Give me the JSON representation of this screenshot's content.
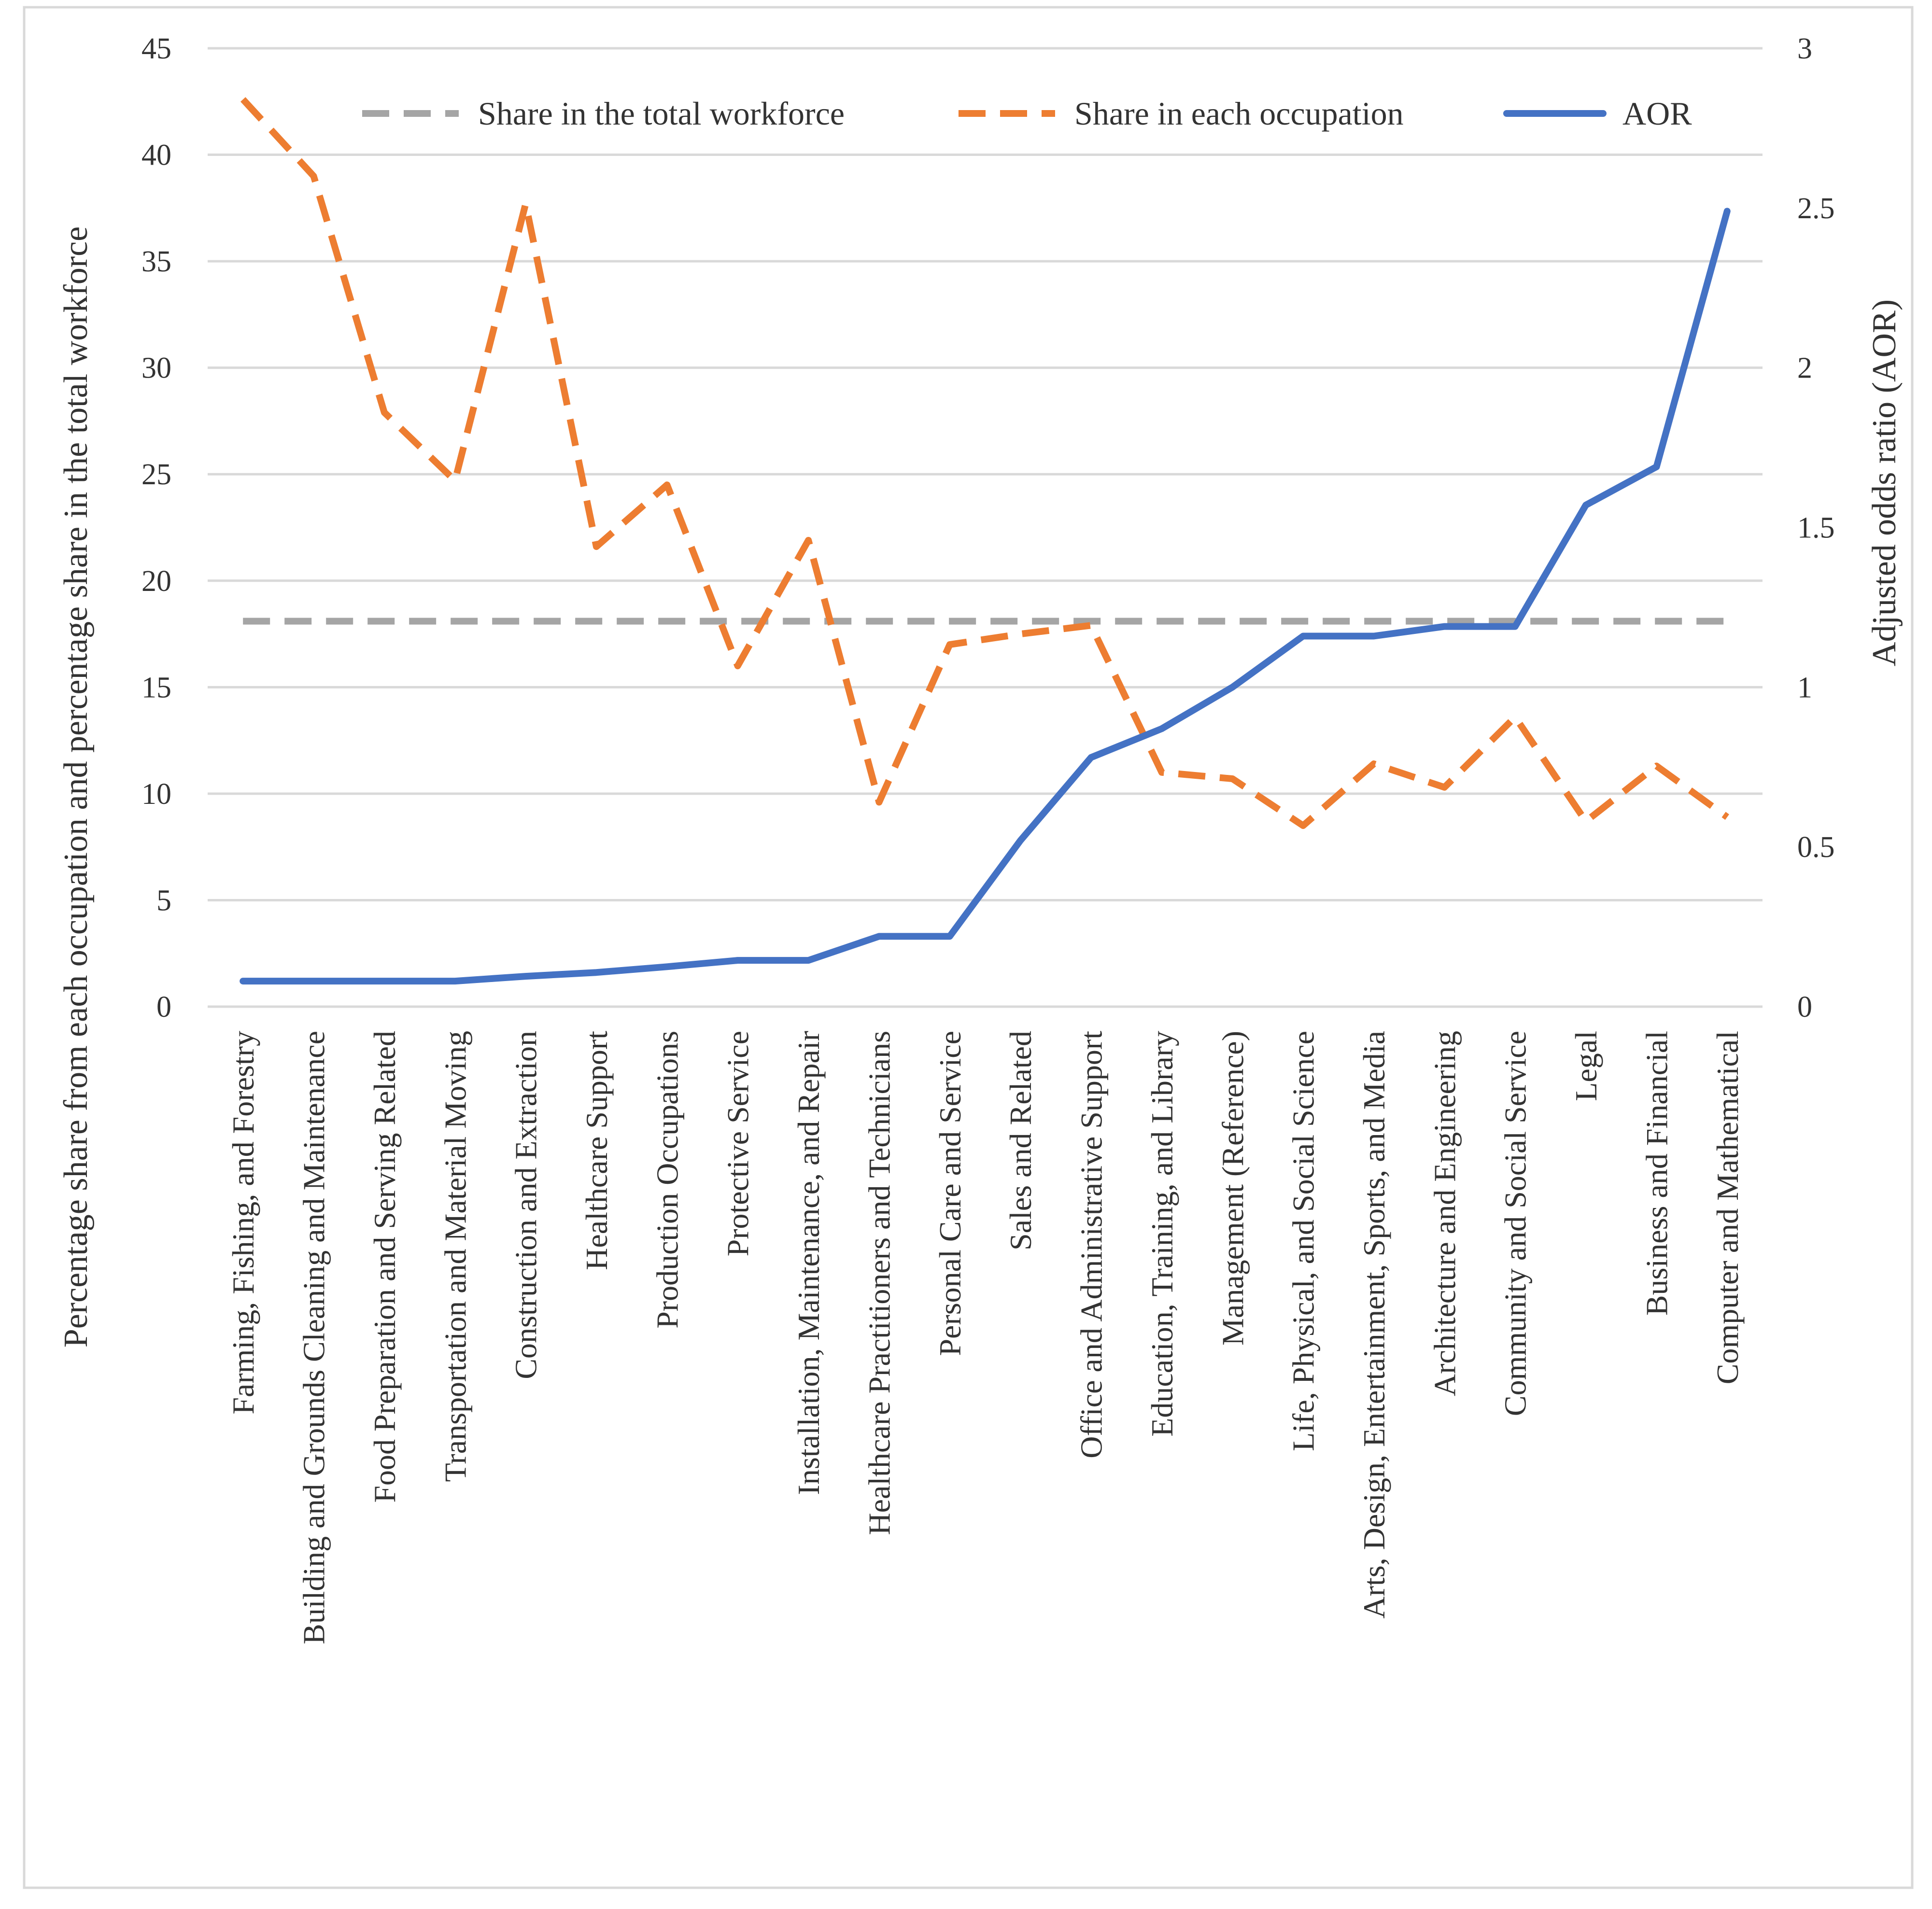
{
  "chart_data": {
    "type": "line",
    "title": "",
    "categories": [
      "Farming, Fishing, and Forestry",
      "Building and Grounds Cleaning and Maintenance",
      "Food Preparation and Serving Related",
      "Transportation and Material Moving",
      "Construction and Extraction",
      "Healthcare Support",
      "Production Occupations",
      "Protective Service",
      "Installation, Maintenance, and Repair",
      "Healthcare Practitioners and Technicians",
      "Personal Care and Service",
      "Sales and Related",
      "Office and Administrative Support",
      "Education, Training, and Library",
      "Management (Reference)",
      "Life, Physical, and Social Science",
      "Arts, Design, Entertainment, Sports, and Media",
      "Architecture and Engineering",
      "Community and Social Service",
      "Legal",
      "Business and Financial",
      "Computer and Mathematical"
    ],
    "series": [
      {
        "name": "Share in the total workforce",
        "axis": "left",
        "color": "#a5a5a5",
        "dash": "dashed",
        "values": [
          18.1,
          18.1,
          18.1,
          18.1,
          18.1,
          18.1,
          18.1,
          18.1,
          18.1,
          18.1,
          18.1,
          18.1,
          18.1,
          18.1,
          18.1,
          18.1,
          18.1,
          18.1,
          18.1,
          18.1,
          18.1,
          18.1
        ]
      },
      {
        "name": "Share in each occupation",
        "axis": "left",
        "color": "#ed7d31",
        "dash": "dashed",
        "values": [
          42.6,
          39.0,
          27.9,
          24.7,
          37.7,
          21.6,
          24.5,
          16.0,
          21.9,
          9.6,
          17.0,
          17.5,
          17.9,
          11.0,
          10.7,
          8.5,
          11.4,
          10.3,
          13.6,
          8.7,
          11.3,
          8.9
        ]
      },
      {
        "name": "AOR",
        "axis": "right",
        "color": "#4472c4",
        "dash": "solid",
        "values": [
          0.08,
          0.08,
          0.08,
          0.08,
          0.095,
          0.107,
          0.125,
          0.145,
          0.145,
          0.22,
          0.22,
          0.52,
          0.78,
          0.87,
          1.0,
          1.16,
          1.16,
          1.19,
          1.19,
          1.57,
          1.69,
          2.49
        ]
      }
    ],
    "left_axis": {
      "label": "Percentage share from each occupation and  percentage share in the total workforce",
      "ylim": [
        0,
        45
      ],
      "ticks": [
        0,
        5,
        10,
        15,
        20,
        25,
        30,
        35,
        40,
        45
      ]
    },
    "right_axis": {
      "label": "Adjusted odds ratio (AOR)",
      "ylim": [
        0,
        3
      ],
      "ticks": [
        "0",
        "0.5",
        "1",
        "1.5",
        "2",
        "2.5",
        "3"
      ]
    },
    "xlabel": "",
    "grid": true,
    "legend_position": "top"
  }
}
